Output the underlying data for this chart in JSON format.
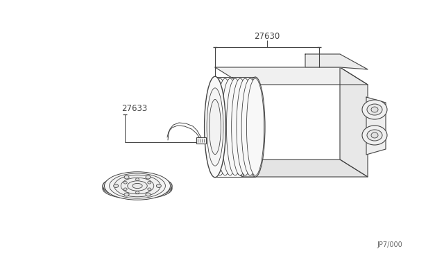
{
  "background_color": "#ffffff",
  "line_color": "#444444",
  "label_27630": "27630",
  "label_27633": "27633",
  "diagram_code": "JP7/000",
  "fig_width": 6.4,
  "fig_height": 3.72,
  "dpi": 100
}
